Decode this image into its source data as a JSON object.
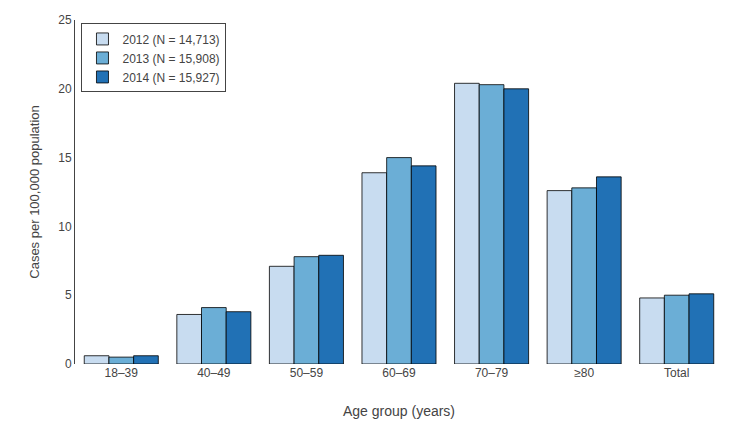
{
  "chart_data": {
    "type": "bar",
    "categories": [
      "18–39",
      "40–49",
      "50–59",
      "60–69",
      "70–79",
      "≥80",
      "Total"
    ],
    "series": [
      {
        "name": "2012 (N = 14,713)",
        "color": "#c8dcf0",
        "values": [
          0.6,
          3.6,
          7.1,
          13.9,
          20.4,
          12.6,
          4.8
        ]
      },
      {
        "name": "2013 (N = 15,908)",
        "color": "#6baed6",
        "values": [
          0.5,
          4.1,
          7.8,
          15.0,
          20.3,
          12.8,
          5.0
        ]
      },
      {
        "name": "2014 (N = 15,927)",
        "color": "#2171b5",
        "values": [
          0.6,
          3.8,
          7.9,
          14.4,
          20.0,
          13.6,
          5.1
        ]
      }
    ],
    "xlabel": "Age group (years)",
    "ylabel": "Cases per 100,000 population",
    "ylim": [
      0,
      25
    ],
    "yticks": [
      0,
      5,
      10,
      15,
      20,
      25
    ],
    "grid": false,
    "legend": "upper left"
  }
}
